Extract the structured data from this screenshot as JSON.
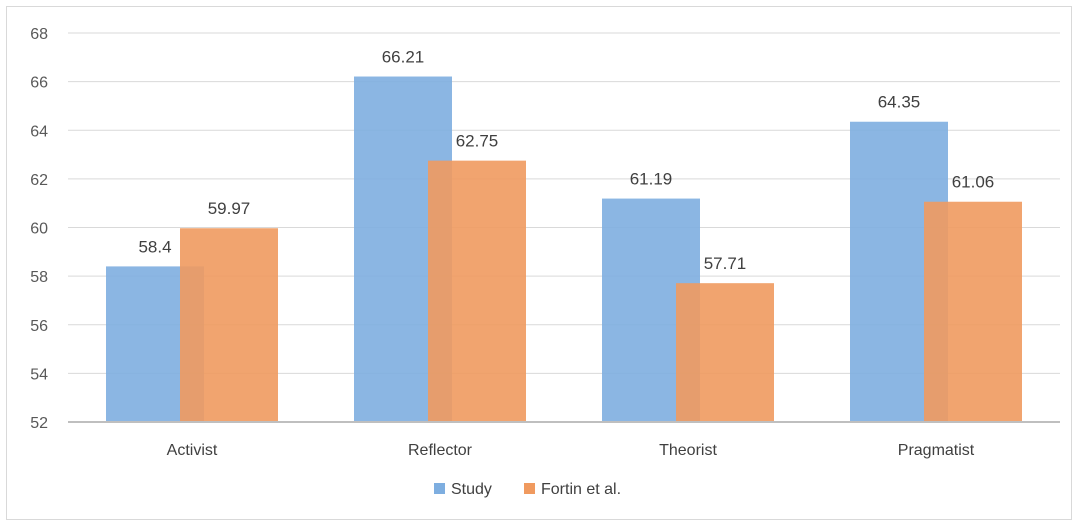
{
  "chart_data": {
    "type": "bar",
    "categories": [
      "Activist",
      "Reflector",
      "Theorist",
      "Pragmatist"
    ],
    "series": [
      {
        "name": "Study",
        "values": [
          58.4,
          66.21,
          61.19,
          64.35
        ],
        "labels": [
          "58.4",
          "66.21",
          "61.19",
          "64.35"
        ],
        "color": "#7eaee0"
      },
      {
        "name": "Fortin et al.",
        "values": [
          59.97,
          62.75,
          57.71,
          61.06
        ],
        "labels": [
          "59.97",
          "62.75",
          "57.71",
          "61.06"
        ],
        "color": "#f09a5f"
      }
    ],
    "title": "",
    "xlabel": "",
    "ylabel": "",
    "ylim": [
      52,
      68
    ],
    "yticks": [
      52,
      54,
      56,
      58,
      60,
      62,
      64,
      66,
      68
    ],
    "grid": true,
    "legend": "bottom",
    "overlap": true
  },
  "colors": {
    "gridline": "#d9d9d9",
    "axis": "#bfbfbf"
  }
}
